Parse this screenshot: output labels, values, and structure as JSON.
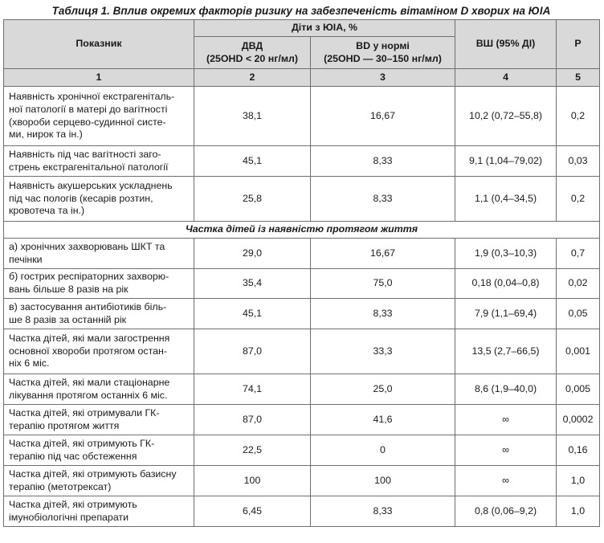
{
  "caption": "Таблиця 1. Вплив окремих факторів ризику на забезпеченість вітаміном D хворих на ЮІА",
  "header": {
    "indicator": "Показник",
    "children_group": "Діти з ЮІА, %",
    "dvd_title": "ДВД",
    "dvd_sub": "(25OHD < 20 нг/мл)",
    "norm_title": "BD у нормі",
    "norm_sub": "(25OHD — 30–150 нг/мл)",
    "or": "ВШ (95% ДІ)",
    "p": "P"
  },
  "col_numbers": [
    "1",
    "2",
    "3",
    "4",
    "5"
  ],
  "section_title": "Частка дітей із наявністю протягом життя",
  "rows_before": [
    {
      "indicator": [
        "Наявність хронічної екстрагеніталь-",
        "ної патології в матері до вагітності",
        "(хвороби серцево-судинної систе-",
        "ми, нирок та ін.)"
      ],
      "dvd": "38,1",
      "norm": "16,67",
      "or": "10,2 (0,72–55,8)",
      "p": "0,2"
    },
    {
      "indicator": [
        "Наявність під час вагітності заго-",
        "стрень екстрагенітальної патології"
      ],
      "dvd": "45,1",
      "norm": "8,33",
      "or": "9,1 (1,04–79,02)",
      "p": "0,03"
    },
    {
      "indicator": [
        "Наявність акушерських ускладнень",
        "під час пологів (кесарів розтин,",
        "кровотеча та ін.)"
      ],
      "dvd": "25,8",
      "norm": "8,33",
      "or": "1,1 (0,4–34,5)",
      "p": "0,2"
    }
  ],
  "rows_after": [
    {
      "indicator": [
        "а) хронічних захворювань ШКТ та",
        "печінки"
      ],
      "dvd": "29,0",
      "norm": "16,67",
      "or": "1,9 (0,3–10,3)",
      "p": "0,7"
    },
    {
      "indicator": [
        "б) гострих респіраторних захворю-",
        "вань більше 8 разів на рік"
      ],
      "dvd": "35,4",
      "norm": "75,0",
      "or": "0,18 (0,04–0,8)",
      "p": "0,02"
    },
    {
      "indicator": [
        "в) застосування антибіотиків біль-",
        "ше 8 разів за останній рік"
      ],
      "dvd": "45,1",
      "norm": "8,33",
      "or": "7,9 (1,1–69,4)",
      "p": "0,05"
    },
    {
      "indicator": [
        "Частка дітей, які мали загострення",
        "основної хвороби протягом остан-",
        "ніх 6 міс."
      ],
      "dvd": "87,0",
      "norm": "33,3",
      "or": "13,5 (2,7–66,5)",
      "p": "0,001"
    },
    {
      "indicator": [
        "Частка дітей, які мали стаціонарне",
        "лікування протягом останніх 6 міс."
      ],
      "dvd": "74,1",
      "norm": "25,0",
      "or": "8,6 (1,9–40,0)",
      "p": "0,005"
    },
    {
      "indicator": [
        "Частка дітей, які отримували ГК-",
        "терапію протягом життя"
      ],
      "dvd": "87,0",
      "norm": "41,6",
      "or": "∞",
      "p": "0,0002"
    },
    {
      "indicator": [
        "Частка дітей, які отримують ГК-",
        "терапію під час обстеження"
      ],
      "dvd": "22,5",
      "norm": "0",
      "or": "∞",
      "p": "0,16"
    },
    {
      "indicator": [
        "Частка дітей, які отримують базисну",
        "терапію (метотрексат)"
      ],
      "dvd": "100",
      "norm": "100",
      "or": "∞",
      "p": "1,0"
    },
    {
      "indicator": [
        "Частка дітей, які отримують",
        "імунобіологічні препарати"
      ],
      "dvd": "6,45",
      "norm": "8,33",
      "or": "0,8 (0,06–9,2)",
      "p": "1,0"
    }
  ]
}
